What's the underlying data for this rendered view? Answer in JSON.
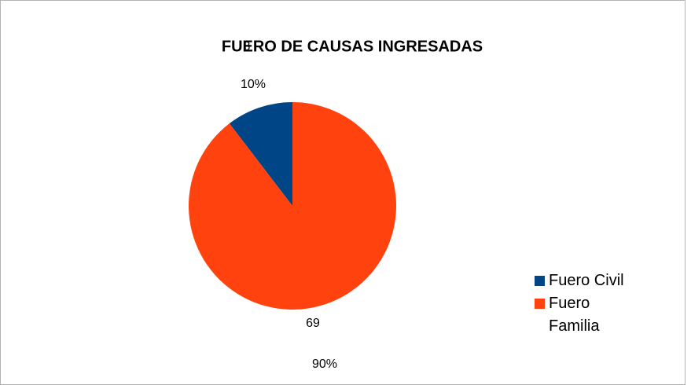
{
  "chart_data": {
    "type": "pie",
    "title": "FUERO DE CAUSAS INGRESADAS",
    "categories": [
      "Fuero Civil",
      "Fuero Familia"
    ],
    "values": [
      8,
      69
    ],
    "percent_labels": [
      "10%",
      "90%"
    ],
    "colors": [
      "#004586",
      "#ff420e"
    ],
    "legend": "right"
  }
}
